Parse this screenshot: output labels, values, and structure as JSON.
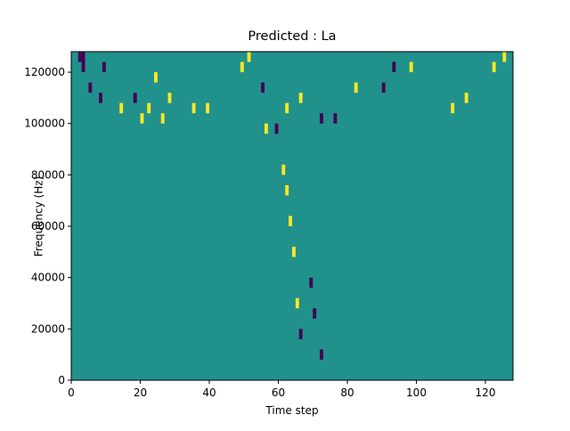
{
  "chart_data": {
    "type": "heatmap",
    "title": "Predicted : La",
    "xlabel": "Time step",
    "ylabel": "Frequency (Hz)",
    "xlim": [
      0,
      128
    ],
    "ylim": [
      0,
      128000
    ],
    "xticks": [
      "0",
      "20",
      "40",
      "60",
      "80",
      "100",
      "120"
    ],
    "yticks": [
      "0",
      "20000",
      "40000",
      "60000",
      "80000",
      "100000",
      "120000"
    ],
    "colormap": "viridis",
    "colors": {
      "low": "#440154",
      "mid": "#21918c",
      "high": "#fde725"
    },
    "grid": false,
    "cell_size": {
      "time_steps": 1,
      "hz": 4000
    },
    "background_value": "mid",
    "cells": [
      {
        "t": 2,
        "f": 124000,
        "v": "low"
      },
      {
        "t": 3,
        "f": 124000,
        "v": "low"
      },
      {
        "t": 3,
        "f": 120000,
        "v": "low"
      },
      {
        "t": 5,
        "f": 112000,
        "v": "low"
      },
      {
        "t": 8,
        "f": 108000,
        "v": "low"
      },
      {
        "t": 9,
        "f": 120000,
        "v": "low"
      },
      {
        "t": 14,
        "f": 104000,
        "v": "yellow"
      },
      {
        "t": 18,
        "f": 108000,
        "v": "low"
      },
      {
        "t": 20,
        "f": 100000,
        "v": "yellow"
      },
      {
        "t": 22,
        "f": 104000,
        "v": "yellow"
      },
      {
        "t": 24,
        "f": 116000,
        "v": "yellow"
      },
      {
        "t": 26,
        "f": 100000,
        "v": "yellow"
      },
      {
        "t": 28,
        "f": 108000,
        "v": "yellow"
      },
      {
        "t": 35,
        "f": 104000,
        "v": "yellow"
      },
      {
        "t": 39,
        "f": 104000,
        "v": "yellow"
      },
      {
        "t": 49,
        "f": 120000,
        "v": "yellow"
      },
      {
        "t": 51,
        "f": 124000,
        "v": "yellow"
      },
      {
        "t": 55,
        "f": 112000,
        "v": "low"
      },
      {
        "t": 56,
        "f": 96000,
        "v": "yellow"
      },
      {
        "t": 59,
        "f": 96000,
        "v": "low"
      },
      {
        "t": 62,
        "f": 104000,
        "v": "yellow"
      },
      {
        "t": 66,
        "f": 108000,
        "v": "yellow"
      },
      {
        "t": 72,
        "f": 100000,
        "v": "low"
      },
      {
        "t": 76,
        "f": 100000,
        "v": "low"
      },
      {
        "t": 82,
        "f": 112000,
        "v": "yellow"
      },
      {
        "t": 90,
        "f": 112000,
        "v": "low"
      },
      {
        "t": 93,
        "f": 120000,
        "v": "low"
      },
      {
        "t": 98,
        "f": 120000,
        "v": "yellow"
      },
      {
        "t": 110,
        "f": 104000,
        "v": "yellow"
      },
      {
        "t": 114,
        "f": 108000,
        "v": "yellow"
      },
      {
        "t": 122,
        "f": 120000,
        "v": "yellow"
      },
      {
        "t": 125,
        "f": 124000,
        "v": "yellow"
      },
      {
        "t": 61,
        "f": 80000,
        "v": "yellow"
      },
      {
        "t": 62,
        "f": 72000,
        "v": "yellow"
      },
      {
        "t": 63,
        "f": 60000,
        "v": "yellow"
      },
      {
        "t": 64,
        "f": 48000,
        "v": "yellow"
      },
      {
        "t": 65,
        "f": 28000,
        "v": "yellow"
      },
      {
        "t": 66,
        "f": 16000,
        "v": "low"
      },
      {
        "t": 69,
        "f": 36000,
        "v": "low"
      },
      {
        "t": 70,
        "f": 24000,
        "v": "low"
      },
      {
        "t": 72,
        "f": 8000,
        "v": "low"
      }
    ]
  }
}
